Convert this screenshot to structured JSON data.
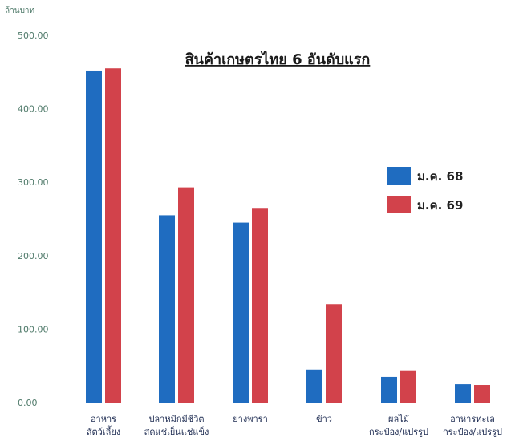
{
  "chart_data": {
    "type": "bar",
    "title": "สินค้าเกษตรไทย 6 อันดับแรก",
    "ylabel": "ล้านบาท",
    "ylim": [
      0,
      500
    ],
    "y_ticks": [
      "0.00",
      "100.00",
      "200.00",
      "300.00",
      "400.00",
      "500.00"
    ],
    "categories": [
      [
        "อาหาร",
        "สัตว์เลี้ยง"
      ],
      [
        "ปลาหมึกมีชีวิต",
        "สดแช่เย็นแช่แข็ง"
      ],
      [
        "ยางพารา"
      ],
      [
        "ข้าว"
      ],
      [
        "ผลไม้",
        "กระป๋อง/แปรรูป"
      ],
      [
        "อาหารทะเล",
        "กระป๋อง/แปรรูป"
      ]
    ],
    "series": [
      {
        "name": "ม.ค. 68",
        "color": "#1f6cc0",
        "values": [
          452,
          255,
          245,
          45,
          35,
          25
        ]
      },
      {
        "name": "ม.ค. 69",
        "color": "#d2424b",
        "values": [
          455,
          293,
          265,
          134,
          44,
          24
        ]
      }
    ],
    "grid": false,
    "legend_position": "right"
  }
}
